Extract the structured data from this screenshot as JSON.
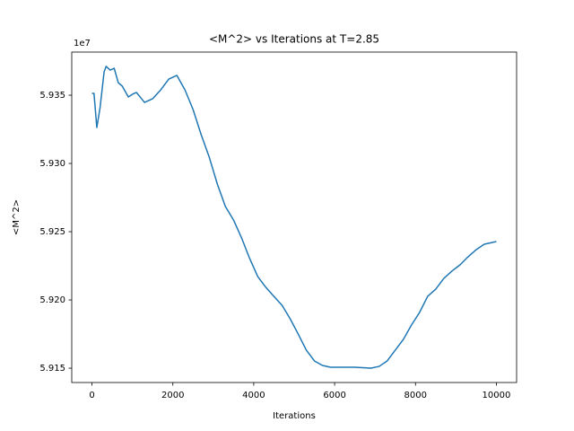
{
  "chart_data": {
    "type": "line",
    "title": "<M^2> vs Iterations at T=2.85",
    "x_label": "Iterations",
    "y_label": "<M^2>",
    "y_offset_label": "1e7",
    "x": [
      0,
      50,
      120,
      200,
      300,
      350,
      450,
      550,
      650,
      750,
      900,
      1000,
      1100,
      1300,
      1500,
      1700,
      1900,
      2100,
      2300,
      2500,
      2700,
      2900,
      3100,
      3300,
      3500,
      3700,
      3900,
      4100,
      4300,
      4500,
      4700,
      4900,
      5100,
      5300,
      5500,
      5700,
      5900,
      6100,
      6500,
      6900,
      7100,
      7300,
      7500,
      7700,
      7900,
      8100,
      8300,
      8500,
      8700,
      8900,
      9100,
      9300,
      9500,
      9700,
      9900,
      10000
    ],
    "series": [
      {
        "name": "<M^2>",
        "color": "#1f77b4",
        "values": [
          5.93513,
          5.93513,
          5.93263,
          5.93408,
          5.93671,
          5.93711,
          5.93684,
          5.93697,
          5.93592,
          5.93566,
          5.93487,
          5.93507,
          5.9352,
          5.93447,
          5.93474,
          5.93539,
          5.93618,
          5.93645,
          5.93539,
          5.93395,
          5.93211,
          5.93046,
          5.92849,
          5.92684,
          5.92586,
          5.92454,
          5.92303,
          5.92171,
          5.92092,
          5.92026,
          5.91961,
          5.91862,
          5.9175,
          5.91632,
          5.91553,
          5.9152,
          5.91507,
          5.91507,
          5.91507,
          5.915,
          5.91513,
          5.91553,
          5.91632,
          5.91711,
          5.91816,
          5.91908,
          5.92026,
          5.92079,
          5.92158,
          5.92211,
          5.92257,
          5.92316,
          5.92368,
          5.92408,
          5.92421,
          5.92428
        ]
      }
    ],
    "xlim": [
      -500,
      10500
    ],
    "ylim": [
      5.91395,
      5.93816
    ],
    "xticks": [
      0,
      2000,
      4000,
      6000,
      8000,
      10000
    ],
    "yticks": [
      {
        "value": 5.915,
        "label": "5.915"
      },
      {
        "value": 5.92,
        "label": "5.920"
      },
      {
        "value": 5.925,
        "label": "5.925"
      },
      {
        "value": 5.93,
        "label": "5.930"
      },
      {
        "value": 5.935,
        "label": "5.935"
      }
    ],
    "grid": false
  }
}
